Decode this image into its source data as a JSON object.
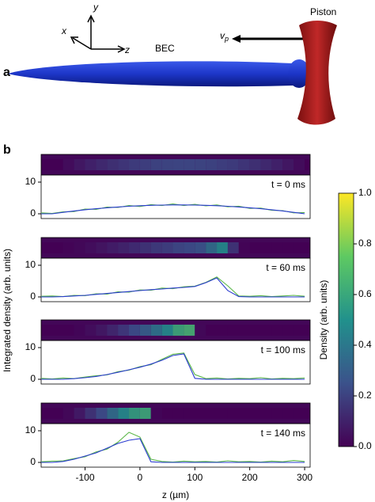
{
  "panel_a": {
    "label": "a",
    "axis_y": "y",
    "axis_x": "x",
    "axis_z": "z",
    "bec": "BEC",
    "piston": "Piston",
    "velocity": "v",
    "velocity_sub": "p"
  },
  "panel_b": {
    "label": "b",
    "xlabel": "z (µm)",
    "ylabel": "Integrated density (arb. units)"
  },
  "colorbar": {
    "label": "Density (arb. units)",
    "ylim": [
      0,
      1
    ],
    "yticks": [
      {
        "value": 0,
        "label": "0.0"
      },
      {
        "value": 0.2,
        "label": "0.2"
      },
      {
        "value": 0.4,
        "label": "0.4"
      },
      {
        "value": 0.6,
        "label": "0.6"
      },
      {
        "value": 0.8,
        "label": "0.8"
      },
      {
        "value": 1,
        "label": "1.0"
      }
    ]
  },
  "chart_data": [
    {
      "type": "line",
      "annotation": "t = 0 ms",
      "x": [
        -180,
        -160,
        -140,
        -120,
        -100,
        -80,
        -60,
        -40,
        -20,
        0,
        20,
        40,
        60,
        80,
        100,
        120,
        140,
        160,
        180,
        200,
        220,
        240,
        260,
        280,
        300
      ],
      "series": [
        {
          "color": "#2a3bd0",
          "values": [
            0,
            0,
            0.46,
            0.89,
            1.27,
            1.61,
            1.91,
            2.16,
            2.37,
            2.54,
            2.67,
            2.75,
            2.8,
            2.8,
            2.75,
            2.67,
            2.54,
            2.37,
            2.16,
            1.91,
            1.61,
            1.27,
            0.89,
            0.46,
            0
          ]
        },
        {
          "color": "#5cb84a",
          "values": [
            0.3,
            0.1,
            0.6,
            0.7,
            1.5,
            1.4,
            2.1,
            2.0,
            2.6,
            2.3,
            2.9,
            2.6,
            3.1,
            2.6,
            3.0,
            2.5,
            2.8,
            2.2,
            2.4,
            1.7,
            1.8,
            1.1,
            1.0,
            0.3,
            0.4
          ]
        }
      ],
      "xlim": [
        -180,
        310
      ],
      "ylim": [
        -1.5,
        12.25
      ],
      "yticks": [
        0,
        10
      ]
    },
    {
      "type": "line",
      "annotation": "t = 60 ms",
      "x": [
        -180,
        -160,
        -140,
        -120,
        -100,
        -80,
        -60,
        -40,
        -20,
        0,
        20,
        40,
        60,
        80,
        100,
        120,
        140,
        160,
        180,
        200,
        220,
        240,
        260,
        280,
        300
      ],
      "series": [
        {
          "color": "#2a3bd0",
          "values": [
            0,
            0,
            0.1,
            0.3,
            0.5,
            0.8,
            1.1,
            1.4,
            1.7,
            2.0,
            2.3,
            2.5,
            2.8,
            3.0,
            3.3,
            4.5,
            6.0,
            2.0,
            0.1,
            0,
            0,
            0,
            0,
            0,
            0
          ]
        },
        {
          "color": "#5cb84a",
          "values": [
            0.2,
            0.3,
            0.1,
            0.5,
            0.4,
            1.0,
            0.9,
            1.6,
            1.5,
            2.2,
            2.1,
            2.8,
            2.6,
            3.2,
            3.4,
            4.6,
            6.3,
            3.5,
            0.3,
            0.2,
            0.4,
            0.1,
            0.3,
            0.5,
            0.2
          ]
        }
      ],
      "xlim": [
        -180,
        310
      ],
      "ylim": [
        -1.5,
        12.25
      ],
      "yticks": [
        0,
        10
      ]
    },
    {
      "type": "line",
      "annotation": "t = 100 ms",
      "x": [
        -180,
        -160,
        -140,
        -120,
        -100,
        -80,
        -60,
        -40,
        -20,
        0,
        20,
        40,
        60,
        80,
        100,
        120,
        140,
        160,
        180,
        200,
        220,
        240,
        260,
        280,
        300
      ],
      "series": [
        {
          "color": "#2a3bd0",
          "values": [
            0,
            0,
            0,
            0.2,
            0.5,
            0.9,
            1.5,
            2.2,
            3.0,
            3.8,
            4.8,
            6.0,
            7.5,
            8.0,
            0.3,
            0,
            0,
            0,
            0,
            0,
            0,
            0,
            0,
            0,
            0
          ]
        },
        {
          "color": "#5cb84a",
          "values": [
            0.3,
            0.1,
            0.4,
            0.2,
            0.7,
            1.1,
            1.4,
            2.4,
            2.9,
            4.0,
            4.6,
            6.3,
            7.9,
            8.3,
            1.5,
            0.2,
            0.4,
            0.1,
            0.3,
            0.2,
            0.5,
            0.1,
            0.3,
            0.2,
            0.4
          ]
        }
      ],
      "xlim": [
        -180,
        310
      ],
      "ylim": [
        -1.5,
        12.25
      ],
      "yticks": [
        0,
        10
      ]
    },
    {
      "type": "line",
      "annotation": "t = 140 ms",
      "x": [
        -180,
        -160,
        -140,
        -120,
        -100,
        -80,
        -60,
        -40,
        -20,
        0,
        20,
        40,
        60,
        80,
        100,
        120,
        140,
        160,
        180,
        200,
        220,
        240,
        260,
        280,
        300
      ],
      "series": [
        {
          "color": "#2a3bd0",
          "values": [
            0,
            0,
            0.3,
            1.0,
            2.0,
            3.0,
            4.5,
            6.0,
            7.0,
            7.5,
            0.2,
            0,
            0,
            0,
            0,
            0,
            0,
            0,
            0,
            0,
            0,
            0,
            0,
            0,
            0
          ]
        },
        {
          "color": "#5cb84a",
          "values": [
            0.2,
            0.4,
            0.5,
            1.2,
            1.8,
            3.3,
            4.2,
            6.4,
            9.5,
            8.0,
            1.0,
            0.3,
            0.1,
            0.4,
            0.2,
            0.3,
            0.1,
            0.5,
            0.2,
            0.3,
            0.1,
            0.4,
            0.2,
            0.6,
            0.3
          ]
        }
      ],
      "xlim": [
        -180,
        310
      ],
      "ylim": [
        -1.5,
        12.25
      ],
      "yticks": [
        0,
        10
      ],
      "xticks": [
        -100,
        0,
        100,
        200,
        300
      ]
    }
  ]
}
